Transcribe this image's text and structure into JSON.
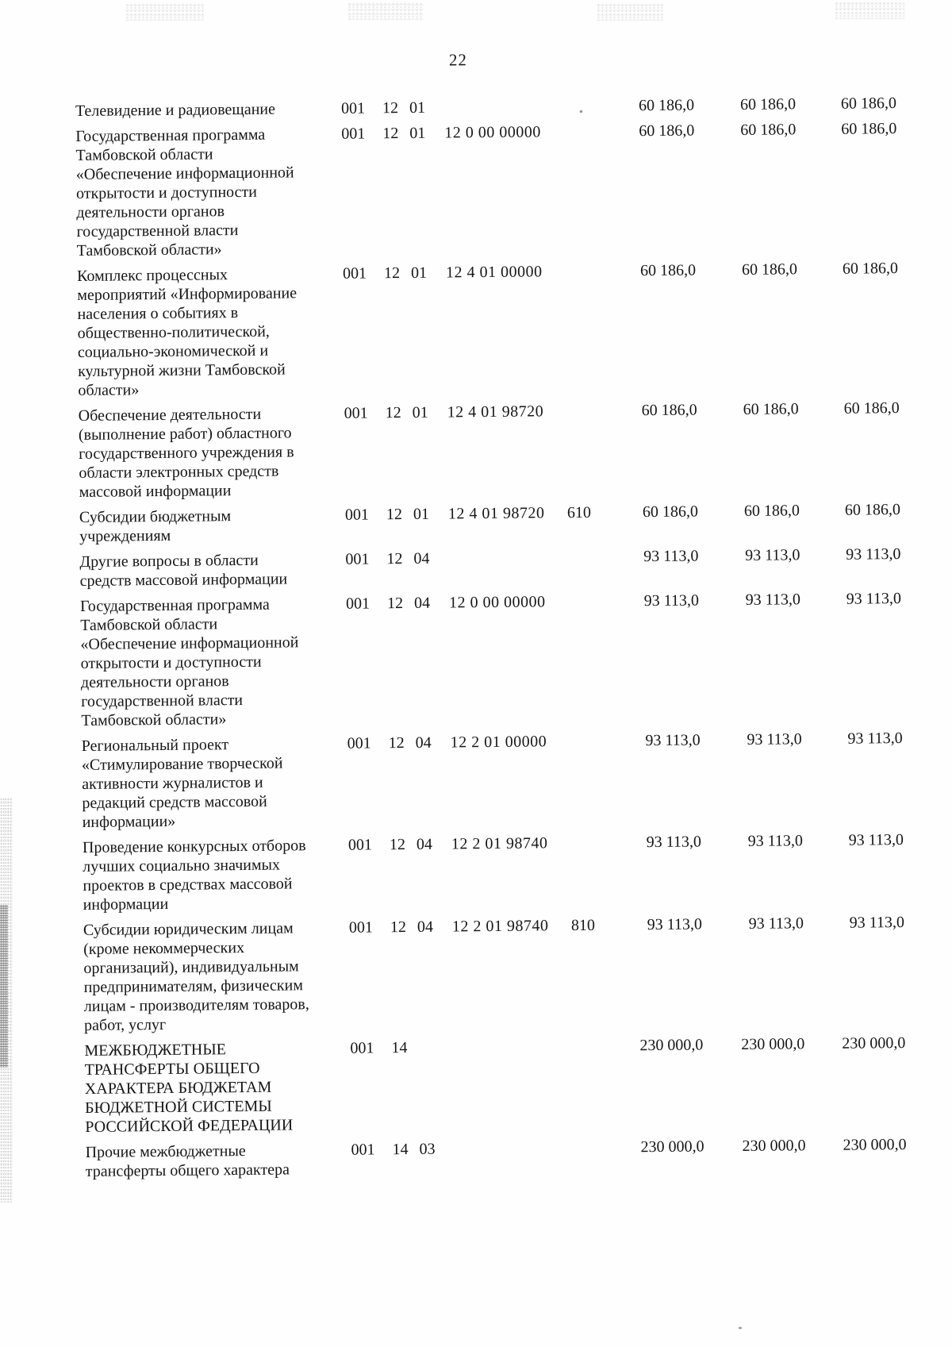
{
  "page_number": "22",
  "table": {
    "rows": [
      {
        "name": "Телевидение и радиовещание",
        "grbs": "001",
        "section": "12",
        "subsection": "01",
        "target_article": "",
        "expense_type": "",
        "amounts": [
          "60 186,0",
          "60 186,0",
          "60 186,0"
        ]
      },
      {
        "name": "Государственная программа\nТамбовской области\n«Обеспечение информационной\nоткрытости и доступности\nдеятельности органов\nгосударственной власти\nТамбовской области»",
        "grbs": "001",
        "section": "12",
        "subsection": "01",
        "target_article": "12 0 00 00000",
        "expense_type": "",
        "amounts": [
          "60 186,0",
          "60 186,0",
          "60 186,0"
        ]
      },
      {
        "name": "Комплекс процессных\nмероприятий «Информирование\nнаселения о событиях в\nобщественно-политической,\nсоциально-экономической и\nкультурной жизни Тамбовской\nобласти»",
        "grbs": "001",
        "section": "12",
        "subsection": "01",
        "target_article": "12 4 01 00000",
        "expense_type": "",
        "amounts": [
          "60 186,0",
          "60 186,0",
          "60 186,0"
        ]
      },
      {
        "name": "Обеспечение деятельности\n(выполнение работ) областного\nгосударственного учреждения в\nобласти электронных средств\nмассовой информации",
        "grbs": "001",
        "section": "12",
        "subsection": "01",
        "target_article": "12 4 01 98720",
        "expense_type": "",
        "amounts": [
          "60 186,0",
          "60 186,0",
          "60 186,0"
        ]
      },
      {
        "name": "Субсидии бюджетным\nучреждениям",
        "grbs": "001",
        "section": "12",
        "subsection": "01",
        "target_article": "12 4 01 98720",
        "expense_type": "610",
        "amounts": [
          "60 186,0",
          "60 186,0",
          "60 186,0"
        ]
      },
      {
        "name": "Другие вопросы в области\nсредств массовой информации",
        "grbs": "001",
        "section": "12",
        "subsection": "04",
        "target_article": "",
        "expense_type": "",
        "amounts": [
          "93 113,0",
          "93 113,0",
          "93 113,0"
        ]
      },
      {
        "name": "Государственная программа\nТамбовской области\n«Обеспечение информационной\nоткрытости и доступности\nдеятельности органов\nгосударственной власти\nТамбовской области»",
        "grbs": "001",
        "section": "12",
        "subsection": "04",
        "target_article": "12 0 00 00000",
        "expense_type": "",
        "amounts": [
          "93 113,0",
          "93 113,0",
          "93 113,0"
        ]
      },
      {
        "name": "Региональный проект\n«Стимулирование творческой\nактивности журналистов и\nредакций средств массовой\nинформации»",
        "grbs": "001",
        "section": "12",
        "subsection": "04",
        "target_article": "12 2 01 00000",
        "expense_type": "",
        "amounts": [
          "93 113,0",
          "93 113,0",
          "93 113,0"
        ]
      },
      {
        "name": "Проведение конкурсных отборов\nлучших социально значимых\nпроектов в средствах массовой\nинформации",
        "grbs": "001",
        "section": "12",
        "subsection": "04",
        "target_article": "12 2 01 98740",
        "expense_type": "",
        "amounts": [
          "93 113,0",
          "93 113,0",
          "93 113,0"
        ]
      },
      {
        "name": "Субсидии юридическим лицам\n(кроме некоммерческих\nорганизаций), индивидуальным\nпредпринимателям, физическим\nлицам - производителям товаров,\nработ, услуг",
        "grbs": "001",
        "section": "12",
        "subsection": "04",
        "target_article": "12 2 01 98740",
        "expense_type": "810",
        "amounts": [
          "93 113,0",
          "93 113,0",
          "93 113,0"
        ]
      },
      {
        "name": "МЕЖБЮДЖЕТНЫЕ\nТРАНСФЕРТЫ ОБЩЕГО\nХАРАКТЕРА БЮДЖЕТАМ\nБЮДЖЕТНОЙ СИСТЕМЫ\nРОССИЙСКОЙ ФЕДЕРАЦИИ",
        "grbs": "001",
        "section": "14",
        "subsection": "",
        "target_article": "",
        "expense_type": "",
        "amounts": [
          "230 000,0",
          "230 000,0",
          "230 000,0"
        ]
      },
      {
        "name": "Прочие межбюджетные\nтрансферты общего характера",
        "grbs": "001",
        "section": "14",
        "subsection": "03",
        "target_article": "",
        "expense_type": "",
        "amounts": [
          "230 000,0",
          "230 000,0",
          "230 000,0"
        ]
      }
    ]
  }
}
